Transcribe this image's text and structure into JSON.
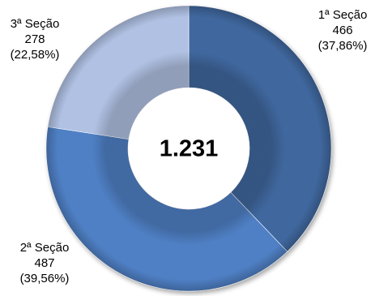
{
  "chart_data": {
    "type": "pie",
    "variant": "donut",
    "total_label": "1.231",
    "slices": [
      {
        "name": "1ª Seção",
        "value": 466,
        "value_label": "466",
        "percent_label": "(37,86%)",
        "color": "#41689f"
      },
      {
        "name": "2ª Seção",
        "value": 487,
        "value_label": "487",
        "percent_label": "(39,56%)",
        "color": "#4f80c5"
      },
      {
        "name": "3ª Seção",
        "value": 278,
        "value_label": "278",
        "percent_label": "(22,58%)",
        "color": "#b0c1e3"
      }
    ],
    "start_angle_deg": 0,
    "direction": "clockwise"
  }
}
